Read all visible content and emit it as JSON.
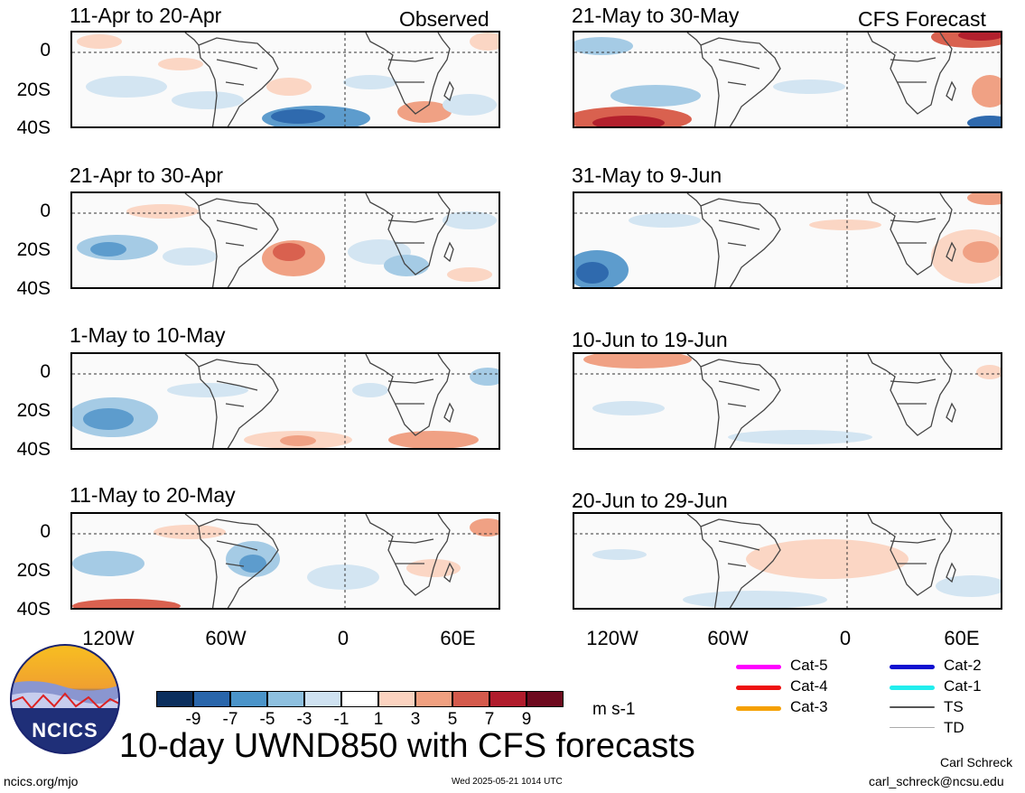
{
  "header": {
    "observed_label": "Observed",
    "forecast_label": "CFS Forecast"
  },
  "panels": [
    {
      "title": "11-Apr to 20-Apr",
      "kind": "observed"
    },
    {
      "title": "21-Apr to 30-Apr",
      "kind": "observed"
    },
    {
      "title": "1-May to 10-May",
      "kind": "observed"
    },
    {
      "title": "11-May to 20-May",
      "kind": "observed"
    },
    {
      "title": "21-May to 30-May",
      "kind": "forecast"
    },
    {
      "title": "31-May to 9-Jun",
      "kind": "forecast"
    },
    {
      "title": "10-Jun to 19-Jun",
      "kind": "forecast"
    },
    {
      "title": "20-Jun to 29-Jun",
      "kind": "forecast"
    }
  ],
  "axes": {
    "y_ticks": [
      "0",
      "20S",
      "40S"
    ],
    "x_ticks": [
      "120W",
      "60W",
      "0",
      "60E"
    ]
  },
  "colorbar": {
    "tick_labels": [
      "-9",
      "-7",
      "-5",
      "-3",
      "-1",
      "1",
      "3",
      "5",
      "7",
      "9"
    ],
    "colors": [
      "#0c2f5e",
      "#2a66ab",
      "#4b94c9",
      "#8ec0df",
      "#cfe2f1",
      "#ffffff",
      "#fbd3c0",
      "#f0a080",
      "#d45a4c",
      "#b01c2c",
      "#6d0a1e"
    ],
    "units": "m s-1"
  },
  "legend": [
    {
      "label": "Cat-5",
      "color": "#ff00ff"
    },
    {
      "label": "Cat-4",
      "color": "#ee1111"
    },
    {
      "label": "Cat-3",
      "color": "#f5a000"
    },
    {
      "label": "Cat-2",
      "color": "#1010d0"
    },
    {
      "label": "Cat-1",
      "color": "#22eeee"
    },
    {
      "label": "TS",
      "color": "#555555"
    },
    {
      "label": "TD",
      "color": "#aaaaaa"
    }
  ],
  "title": "10-day UWND850 with CFS forecasts",
  "logo_text": "NCICS",
  "footer": {
    "url": "ncics.org/mjo",
    "timestamp": "Wed 2025-05-21 1014 UTC",
    "author": "Carl Schreck",
    "email": "carl_schreck@ncsu.edu"
  },
  "map_colors": {
    "neg1": "#d3e5f2",
    "neg2": "#a5cbe5",
    "neg3": "#5d9ccd",
    "neg4": "#2f6aae",
    "pos1": "#fbd6c4",
    "pos2": "#f0a184",
    "pos3": "#d9614f",
    "pos4": "#b3202d"
  }
}
